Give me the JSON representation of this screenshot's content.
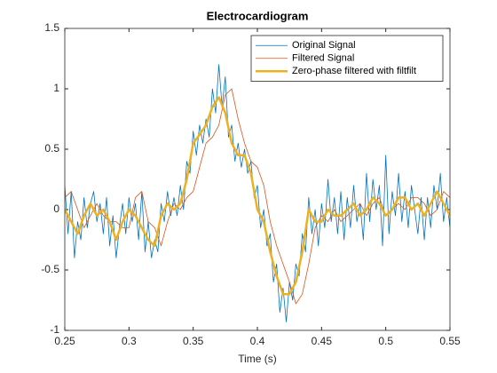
{
  "chart_data": {
    "type": "line",
    "title": "Electrocardiogram",
    "xlabel": "Time (s)",
    "xlim": [
      0.25,
      0.55
    ],
    "xticks": [
      0.25,
      0.3,
      0.35,
      0.4,
      0.45,
      0.5,
      0.55
    ],
    "ylim": [
      -1,
      1.5
    ],
    "yticks": [
      -1,
      -0.5,
      0,
      0.5,
      1,
      1.5
    ],
    "grid": false,
    "legend": "northeast",
    "series": [
      {
        "name": "Original Signal",
        "color": "#0072BD",
        "width": 0.8,
        "x": [
          0.25,
          0.2525,
          0.255,
          0.2575,
          0.26,
          0.2625,
          0.265,
          0.2675,
          0.27,
          0.2725,
          0.275,
          0.2775,
          0.28,
          0.2825,
          0.285,
          0.2875,
          0.29,
          0.2925,
          0.295,
          0.2975,
          0.3,
          0.3025,
          0.305,
          0.3075,
          0.31,
          0.3125,
          0.315,
          0.3175,
          0.32,
          0.3225,
          0.325,
          0.3275,
          0.33,
          0.3325,
          0.335,
          0.3375,
          0.34,
          0.3425,
          0.345,
          0.3475,
          0.35,
          0.3525,
          0.355,
          0.3575,
          0.36,
          0.3625,
          0.365,
          0.3675,
          0.37,
          0.3725,
          0.375,
          0.3775,
          0.38,
          0.3825,
          0.385,
          0.3875,
          0.39,
          0.3925,
          0.395,
          0.3975,
          0.4,
          0.4025,
          0.405,
          0.4075,
          0.41,
          0.4125,
          0.415,
          0.4175,
          0.42,
          0.4225,
          0.425,
          0.4275,
          0.43,
          0.4325,
          0.435,
          0.4375,
          0.44,
          0.4425,
          0.445,
          0.4475,
          0.45,
          0.4525,
          0.455,
          0.4575,
          0.46,
          0.4625,
          0.465,
          0.4675,
          0.47,
          0.4725,
          0.475,
          0.4775,
          0.48,
          0.4825,
          0.485,
          0.4875,
          0.49,
          0.4925,
          0.495,
          0.4975,
          0.5,
          0.5025,
          0.505,
          0.5075,
          0.51,
          0.5125,
          0.515,
          0.5175,
          0.52,
          0.5225,
          0.525,
          0.5275,
          0.53,
          0.5325,
          0.535,
          0.5375,
          0.54,
          0.5425,
          0.545,
          0.5475,
          0.55
        ],
        "values": [
          0.2,
          -0.2,
          0.15,
          -0.4,
          -0.1,
          -0.25,
          0.1,
          -0.15,
          0.05,
          0.15,
          -0.1,
          0.05,
          -0.2,
          0.1,
          -0.3,
          -0.05,
          -0.4,
          -0.15,
          0.05,
          -0.2,
          0.1,
          -0.1,
          0.05,
          -0.25,
          0.15,
          -0.35,
          -0.1,
          -0.4,
          -0.25,
          -0.35,
          0.05,
          -0.1,
          0.15,
          -0.05,
          0.1,
          -0.05,
          0.2,
          0.0,
          0.4,
          0.3,
          0.65,
          0.45,
          0.7,
          0.55,
          0.75,
          0.6,
          1.0,
          0.8,
          1.2,
          0.85,
          1.1,
          0.6,
          0.7,
          0.4,
          0.55,
          0.35,
          0.5,
          0.3,
          0.4,
          0.1,
          0.2,
          -0.15,
          0.0,
          -0.3,
          -0.2,
          -0.6,
          -0.45,
          -0.85,
          -0.65,
          -0.93,
          -0.6,
          -0.75,
          -0.45,
          -0.55,
          -0.2,
          -0.35,
          0.1,
          -0.2,
          0.0,
          -0.3,
          0.05,
          -0.15,
          0.25,
          -0.1,
          0.1,
          -0.2,
          0.15,
          -0.25,
          0.1,
          -0.15,
          0.2,
          -0.1,
          0.05,
          -0.25,
          0.3,
          -0.1,
          0.25,
          0.0,
          0.2,
          -0.3,
          0.45,
          -0.2,
          0.15,
          -0.05,
          0.3,
          -0.1,
          0.15,
          -0.15,
          0.2,
          0.0,
          -0.2,
          0.1,
          -0.25,
          0.1,
          -0.15,
          0.2,
          0.0,
          0.3,
          -0.1,
          0.1,
          -0.15
        ]
      },
      {
        "name": "Filtered Signal",
        "color": "#D95319",
        "width": 0.8,
        "x": [
          0.25,
          0.255,
          0.26,
          0.265,
          0.27,
          0.275,
          0.28,
          0.285,
          0.29,
          0.295,
          0.3,
          0.305,
          0.31,
          0.315,
          0.32,
          0.325,
          0.33,
          0.335,
          0.34,
          0.345,
          0.35,
          0.355,
          0.36,
          0.365,
          0.37,
          0.375,
          0.38,
          0.385,
          0.39,
          0.395,
          0.4,
          0.405,
          0.41,
          0.415,
          0.42,
          0.425,
          0.43,
          0.435,
          0.44,
          0.445,
          0.45,
          0.455,
          0.46,
          0.465,
          0.47,
          0.475,
          0.48,
          0.485,
          0.49,
          0.495,
          0.5,
          0.505,
          0.51,
          0.515,
          0.52,
          0.525,
          0.53,
          0.535,
          0.54,
          0.545,
          0.55
        ],
        "values": [
          0.1,
          0.15,
          0.0,
          -0.15,
          -0.05,
          0.05,
          -0.05,
          -0.1,
          -0.1,
          -0.15,
          -0.15,
          0.1,
          0.15,
          -0.1,
          -0.15,
          -0.3,
          -0.1,
          0.05,
          0.0,
          0.1,
          0.15,
          0.35,
          0.55,
          0.6,
          0.7,
          0.95,
          1.0,
          0.75,
          0.55,
          0.4,
          0.35,
          0.2,
          -0.1,
          -0.3,
          -0.45,
          -0.6,
          -0.78,
          -0.7,
          -0.45,
          -0.15,
          -0.05,
          -0.1,
          0.0,
          -0.1,
          -0.05,
          0.0,
          0.05,
          -0.05,
          0.05,
          0.1,
          -0.05,
          0.0,
          0.05,
          0.0,
          0.1,
          0.1,
          0.05,
          -0.05,
          0.0,
          0.15,
          0.1
        ]
      },
      {
        "name": "Zero-phase filtered with filtfilt",
        "color": "#EDB120",
        "width": 2.5,
        "x": [
          0.25,
          0.255,
          0.26,
          0.265,
          0.27,
          0.275,
          0.28,
          0.285,
          0.29,
          0.295,
          0.3,
          0.305,
          0.31,
          0.315,
          0.32,
          0.325,
          0.33,
          0.335,
          0.34,
          0.345,
          0.35,
          0.355,
          0.36,
          0.365,
          0.37,
          0.375,
          0.38,
          0.385,
          0.39,
          0.395,
          0.4,
          0.405,
          0.41,
          0.415,
          0.42,
          0.425,
          0.43,
          0.435,
          0.44,
          0.445,
          0.45,
          0.455,
          0.46,
          0.465,
          0.47,
          0.475,
          0.48,
          0.485,
          0.49,
          0.495,
          0.5,
          0.505,
          0.51,
          0.515,
          0.52,
          0.525,
          0.53,
          0.535,
          0.54,
          0.545,
          0.55
        ],
        "values": [
          0.0,
          -0.1,
          -0.2,
          -0.05,
          0.05,
          -0.05,
          0.0,
          -0.1,
          -0.25,
          -0.1,
          0.0,
          -0.05,
          -0.15,
          -0.25,
          -0.3,
          -0.05,
          0.05,
          0.0,
          0.05,
          0.25,
          0.55,
          0.62,
          0.7,
          0.85,
          0.93,
          0.8,
          0.55,
          0.45,
          0.45,
          0.3,
          0.0,
          -0.1,
          -0.35,
          -0.55,
          -0.7,
          -0.7,
          -0.6,
          -0.35,
          0.0,
          -0.1,
          -0.1,
          0.0,
          -0.05,
          -0.05,
          0.0,
          0.05,
          -0.05,
          0.0,
          0.1,
          0.05,
          -0.05,
          0.0,
          0.1,
          0.1,
          0.0,
          0.05,
          -0.05,
          0.05,
          0.15,
          0.05,
          -0.05
        ]
      }
    ]
  }
}
